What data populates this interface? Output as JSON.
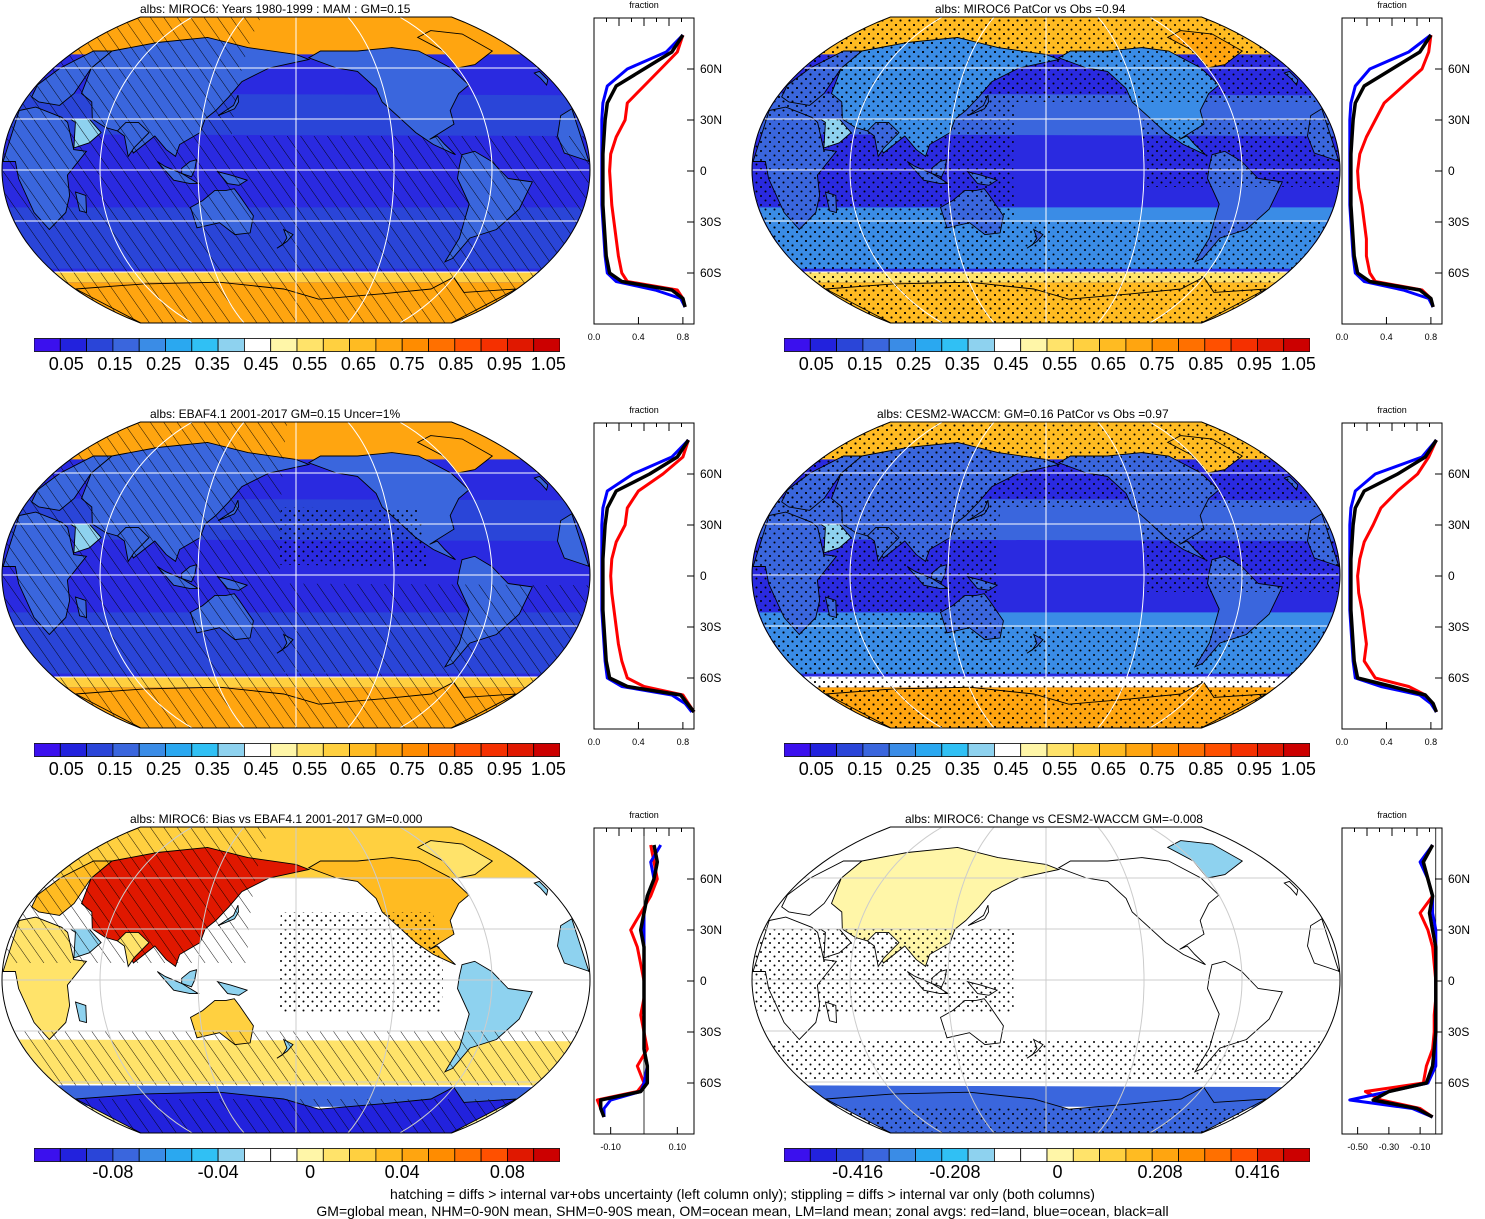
{
  "panels": [
    {
      "id": "p1",
      "title": "albs: MIROC6: Years 1980-1999 : MAM : GM=0.15",
      "kind": "abs",
      "hatch": true,
      "stipple": false
    },
    {
      "id": "p2",
      "title": "albs: MIROC6 PatCor vs Obs =0.94",
      "kind": "abs",
      "hatch": false,
      "stipple": true
    },
    {
      "id": "p3",
      "title": "albs: EBAF4.1 2001-2017 GM=0.15 Uncer=1%",
      "kind": "abs",
      "hatch": true,
      "stipple": true
    },
    {
      "id": "p4",
      "title": "albs: CESM2-WACCM: GM=0.16 PatCor vs Obs =0.97",
      "kind": "abs",
      "hatch": false,
      "stipple": true
    },
    {
      "id": "p5",
      "title": "albs: MIROC6: Bias vs EBAF4.1 2001-2017 GM=0.000",
      "kind": "diff",
      "hatch": true,
      "stipple": true
    },
    {
      "id": "p6",
      "title": "albs: MIROC6: Change vs CESM2-WACCM GM=-0.008",
      "kind": "diff",
      "hatch": false,
      "stipple": true
    }
  ],
  "colorbars": {
    "abs": {
      "labels": [
        "0.05",
        "0.15",
        "0.25",
        "0.35",
        "0.45",
        "0.55",
        "0.65",
        "0.75",
        "0.85",
        "0.95",
        "1.05"
      ],
      "colors": [
        "#3b10ee",
        "#2222dd",
        "#2a45d8",
        "#3a66dd",
        "#3a8ce6",
        "#2aa8f0",
        "#30c0f4",
        "#8ed2ef",
        "#ffffff",
        "#fff6a8",
        "#ffe36a",
        "#ffd040",
        "#ffbb22",
        "#ffa510",
        "#ff8c00",
        "#ff7000",
        "#ff5000",
        "#f53000",
        "#e01800",
        "#cc0000"
      ]
    },
    "bias": {
      "labels": [
        "-0.08",
        "-0.04",
        "0",
        "0.04",
        "0.08"
      ],
      "colors": [
        "#3b10ee",
        "#2222dd",
        "#2a45d8",
        "#3a66dd",
        "#3a8ce6",
        "#2aa8f0",
        "#30c0f4",
        "#8ed2ef",
        "#ffffff",
        "#ffffff",
        "#fff6a8",
        "#ffe36a",
        "#ffd040",
        "#ffbb22",
        "#ffa510",
        "#ff8c00",
        "#ff7000",
        "#ff5000",
        "#e01800",
        "#cc0000"
      ]
    },
    "change": {
      "labels": [
        "-0.416",
        "-0.208",
        "0",
        "0.208",
        "0.416"
      ],
      "colors": [
        "#3b10ee",
        "#2222dd",
        "#2a45d8",
        "#3a66dd",
        "#3a8ce6",
        "#2aa8f0",
        "#30c0f4",
        "#8ed2ef",
        "#ffffff",
        "#ffffff",
        "#fff6a8",
        "#ffe36a",
        "#ffd040",
        "#ffbb22",
        "#ffa510",
        "#ff8c00",
        "#ff7000",
        "#ff5000",
        "#e01800",
        "#cc0000"
      ]
    }
  },
  "zonal_axes": {
    "title": "fraction",
    "lat_labels": [
      "60N",
      "30N",
      "0",
      "30S",
      "60S"
    ],
    "abs_xticks": [
      "0.0",
      "0.4",
      "0.8"
    ],
    "bias_xticks": [
      "-0.10",
      "0.10"
    ],
    "change_xticks": [
      "-0.50",
      "-0.30",
      "-0.10"
    ]
  },
  "footer": {
    "line1": "hatching = diffs > internal var+obs uncertainty (left column only); stippling = diffs > internal var only (both columns)",
    "line2": "GM=global mean, NHM=0-90N mean, SHM=0-90S mean, OM=ocean mean, LM=land mean; zonal avgs: red=land, blue=ocean, black=all"
  },
  "chart_data": [
    {
      "type": "heatmap",
      "panel": "p1",
      "title": "albs: MIROC6: Years 1980-1999 : MAM : GM=0.15",
      "zonal_profile": {
        "lat": [
          80,
          70,
          60,
          50,
          40,
          30,
          20,
          10,
          0,
          -10,
          -20,
          -30,
          -40,
          -50,
          -60,
          -65,
          -70,
          -75,
          -80
        ],
        "land": [
          0.8,
          0.75,
          0.6,
          0.45,
          0.3,
          0.28,
          0.2,
          0.15,
          0.14,
          0.15,
          0.16,
          0.18,
          0.2,
          0.22,
          0.25,
          0.3,
          0.75,
          0.8,
          0.82
        ],
        "ocean": [
          0.8,
          0.65,
          0.3,
          0.12,
          0.08,
          0.07,
          0.07,
          0.07,
          0.07,
          0.07,
          0.07,
          0.08,
          0.09,
          0.1,
          0.12,
          0.2,
          0.55,
          0.78,
          0.82
        ],
        "all": [
          0.8,
          0.7,
          0.45,
          0.2,
          0.12,
          0.1,
          0.09,
          0.08,
          0.08,
          0.08,
          0.08,
          0.09,
          0.1,
          0.11,
          0.14,
          0.25,
          0.7,
          0.8,
          0.82
        ]
      }
    },
    {
      "type": "heatmap",
      "panel": "p2",
      "title": "albs: MIROC6 PatCor vs Obs =0.94",
      "zonal_profile": {
        "lat": [
          80,
          70,
          60,
          50,
          40,
          30,
          20,
          10,
          0,
          -10,
          -20,
          -30,
          -40,
          -50,
          -60,
          -65,
          -70,
          -75,
          -80
        ],
        "land": [
          0.8,
          0.78,
          0.72,
          0.55,
          0.38,
          0.3,
          0.22,
          0.16,
          0.14,
          0.15,
          0.18,
          0.2,
          0.22,
          0.22,
          0.25,
          0.3,
          0.72,
          0.8,
          0.82
        ],
        "ocean": [
          0.8,
          0.6,
          0.25,
          0.12,
          0.08,
          0.07,
          0.07,
          0.07,
          0.07,
          0.07,
          0.07,
          0.08,
          0.09,
          0.1,
          0.12,
          0.2,
          0.55,
          0.78,
          0.82
        ],
        "all": [
          0.8,
          0.7,
          0.45,
          0.2,
          0.12,
          0.1,
          0.09,
          0.08,
          0.08,
          0.08,
          0.08,
          0.09,
          0.1,
          0.11,
          0.14,
          0.25,
          0.7,
          0.8,
          0.82
        ]
      }
    },
    {
      "type": "heatmap",
      "panel": "p3",
      "title": "albs: EBAF4.1 2001-2017 GM=0.15 Uncer=1%",
      "zonal_profile": {
        "lat": [
          80,
          70,
          60,
          50,
          40,
          30,
          20,
          10,
          0,
          -10,
          -20,
          -30,
          -40,
          -50,
          -60,
          -65,
          -70,
          -75,
          -80
        ],
        "land": [
          0.85,
          0.8,
          0.62,
          0.4,
          0.3,
          0.28,
          0.2,
          0.16,
          0.15,
          0.16,
          0.18,
          0.2,
          0.22,
          0.25,
          0.3,
          0.45,
          0.8,
          0.85,
          0.9
        ],
        "ocean": [
          0.85,
          0.7,
          0.35,
          0.12,
          0.08,
          0.07,
          0.07,
          0.07,
          0.07,
          0.07,
          0.07,
          0.08,
          0.09,
          0.1,
          0.12,
          0.25,
          0.7,
          0.82,
          0.88
        ],
        "all": [
          0.85,
          0.75,
          0.5,
          0.2,
          0.12,
          0.1,
          0.09,
          0.08,
          0.08,
          0.08,
          0.08,
          0.09,
          0.1,
          0.11,
          0.14,
          0.3,
          0.78,
          0.84,
          0.9
        ]
      }
    },
    {
      "type": "heatmap",
      "panel": "p4",
      "title": "albs: CESM2-WACCM: GM=0.16 PatCor vs Obs =0.97",
      "zonal_profile": {
        "lat": [
          80,
          70,
          60,
          50,
          40,
          30,
          20,
          10,
          0,
          -10,
          -20,
          -30,
          -40,
          -50,
          -60,
          -65,
          -70,
          -75,
          -80
        ],
        "land": [
          0.85,
          0.78,
          0.68,
          0.5,
          0.35,
          0.28,
          0.2,
          0.16,
          0.14,
          0.15,
          0.18,
          0.2,
          0.22,
          0.2,
          0.3,
          0.6,
          0.75,
          0.82,
          0.85
        ],
        "ocean": [
          0.85,
          0.72,
          0.3,
          0.12,
          0.08,
          0.07,
          0.07,
          0.07,
          0.07,
          0.07,
          0.07,
          0.08,
          0.09,
          0.1,
          0.12,
          0.35,
          0.7,
          0.8,
          0.85
        ],
        "all": [
          0.85,
          0.75,
          0.5,
          0.2,
          0.12,
          0.1,
          0.09,
          0.08,
          0.08,
          0.08,
          0.08,
          0.09,
          0.1,
          0.11,
          0.14,
          0.45,
          0.75,
          0.82,
          0.85
        ]
      }
    },
    {
      "type": "heatmap",
      "panel": "p5",
      "title": "albs: MIROC6: Bias vs EBAF4.1 2001-2017 GM=0.000",
      "zonal_profile": {
        "lat": [
          80,
          70,
          60,
          50,
          40,
          30,
          20,
          10,
          0,
          -10,
          -20,
          -30,
          -40,
          -50,
          -60,
          -65,
          -70,
          -75,
          -80
        ],
        "land": [
          0.02,
          0.03,
          0.04,
          0.02,
          -0.01,
          -0.04,
          -0.02,
          -0.01,
          0,
          0.0,
          -0.01,
          0.0,
          0.01,
          -0.02,
          0.0,
          -0.02,
          -0.14,
          -0.13,
          -0.12
        ],
        "ocean": [
          0.05,
          0.02,
          0.03,
          0.01,
          0.0,
          0.0,
          0.0,
          0.0,
          0.0,
          0.0,
          0.0,
          0.0,
          0.0,
          0.01,
          0.0,
          -0.01,
          -0.1,
          -0.12,
          -0.12
        ],
        "all": [
          0.03,
          0.04,
          0.03,
          0.01,
          0.0,
          -0.01,
          0.0,
          0.0,
          0.0,
          0.0,
          0.0,
          0.0,
          0.0,
          0.01,
          0.01,
          -0.01,
          -0.13,
          -0.13,
          -0.12
        ]
      }
    },
    {
      "type": "heatmap",
      "panel": "p6",
      "title": "albs: MIROC6: Change vs CESM2-WACCM GM=-0.008",
      "zonal_profile": {
        "lat": [
          80,
          70,
          60,
          50,
          40,
          30,
          20,
          10,
          0,
          -10,
          -20,
          -30,
          -40,
          -50,
          -60,
          -65,
          -70,
          -75,
          -80
        ],
        "land": [
          -0.02,
          -0.08,
          -0.05,
          -0.02,
          -0.1,
          -0.05,
          -0.02,
          -0.01,
          0,
          0,
          -0.01,
          -0.01,
          -0.02,
          -0.06,
          -0.08,
          -0.45,
          -0.35,
          -0.1,
          -0.02
        ],
        "ocean": [
          -0.02,
          -0.1,
          -0.05,
          -0.02,
          -0.02,
          0.0,
          0.0,
          0.0,
          0.0,
          0.0,
          0.0,
          0.0,
          0.0,
          0.0,
          -0.05,
          -0.3,
          -0.55,
          -0.15,
          -0.02
        ],
        "all": [
          -0.02,
          -0.08,
          -0.05,
          -0.02,
          -0.04,
          -0.02,
          0.0,
          0.0,
          0.0,
          0.0,
          0.0,
          0.0,
          -0.01,
          -0.02,
          -0.06,
          -0.3,
          -0.4,
          -0.12,
          -0.02
        ]
      }
    }
  ]
}
